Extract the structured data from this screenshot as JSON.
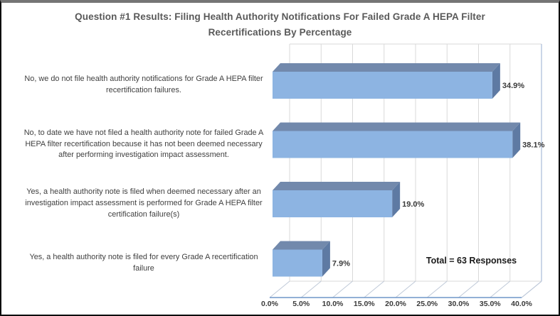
{
  "chart_data": {
    "type": "bar",
    "orientation": "horizontal",
    "style": "3d",
    "title": "Question #1 Results: Filing Health Authority Notifications For Failed Grade A HEPA Filter Recertifications By Percentage",
    "title_lines": [
      "Question #1 Results: Filing Health Authority Notifications For Failed Grade A HEPA Filter",
      "Recertifications By Percentage"
    ],
    "categories": [
      "No, we do not file health authority notifications for Grade A HEPA filter recertification failures.",
      "No, to date we have not filed a health authority note for failed Grade A HEPA filter recertification because it has not been deemed necessary after performing investigation impact assessment.",
      "Yes, a health authority note is filed when deemed necessary after an investigation impact assessment is performed for Grade A HEPA filter certification failure(s)",
      "Yes, a health authority note is filed for every Grade A recertification failure"
    ],
    "values": [
      34.9,
      38.1,
      19.0,
      7.9
    ],
    "value_labels": [
      "34.9%",
      "38.1%",
      "19.0%",
      "7.9%"
    ],
    "x_ticks": [
      "0.0%",
      "5.0%",
      "10.0%",
      "15.0%",
      "20.0%",
      "25.0%",
      "30.0%",
      "35.0%",
      "40.0%"
    ],
    "xlim": [
      0,
      40
    ],
    "grid": "vertical",
    "legend": "none",
    "annotation": "Total = 63 Responses",
    "colors": {
      "bar_front": "#8db4e2",
      "bar_top": "#7289ac",
      "bar_side": "#5e7aa3",
      "gridline": "#d9d9d9",
      "wall_edge": "#a8bbd8",
      "floor_diagonal": "#bfc9d8",
      "front_axis_line": "#6f96c8",
      "title_text": "#595959",
      "label_text": "#3f3f3f"
    }
  }
}
